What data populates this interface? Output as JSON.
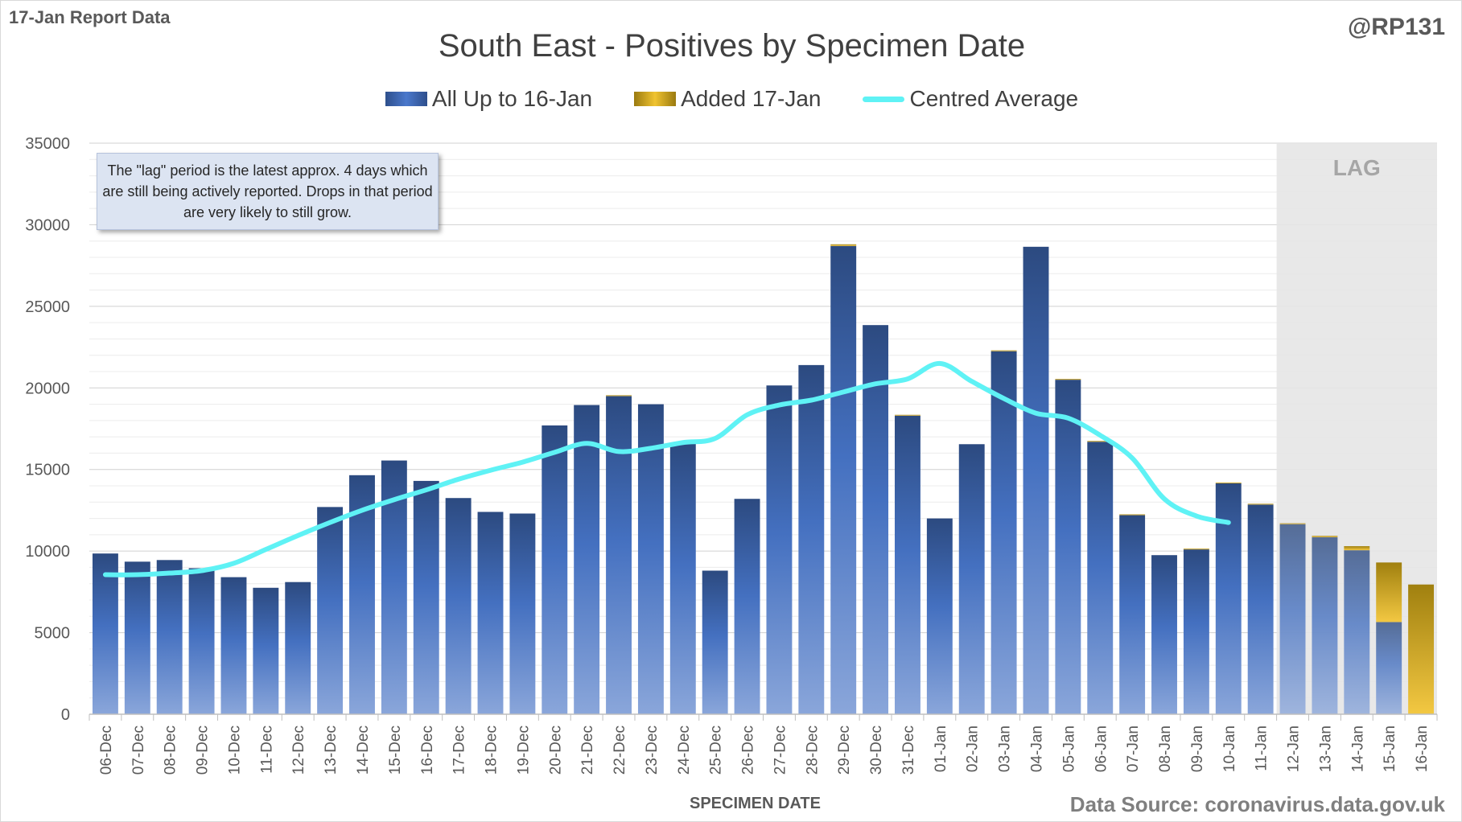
{
  "header": {
    "report_label": "17-Jan Report Data",
    "author": "@RP131",
    "source": "Data Source: coronavirus.data.gov.uk"
  },
  "annotation": {
    "text": "The \"lag\" period is the latest approx. 4 days which are still being actively reported. Drops in that period are very likely to still grow."
  },
  "colors": {
    "bar_dark": "#2c4a80",
    "bar_light": "#8aa6da",
    "added_dark": "#a0800f",
    "added_light": "#f3c842",
    "line": "#5ff2f5",
    "lag_shade": "#e6e6e6",
    "grid": "#d9d9d9"
  },
  "chart_data": {
    "type": "bar",
    "title": "South East - Positives by Specimen Date",
    "xlabel": "SPECIMEN DATE",
    "ylabel": "",
    "ylim": [
      0,
      35000
    ],
    "yticks": [
      0,
      5000,
      10000,
      15000,
      20000,
      25000,
      30000,
      35000
    ],
    "stacked": true,
    "lag_label": "LAG",
    "lag_start_index": 37,
    "categories": [
      "06-Dec",
      "07-Dec",
      "08-Dec",
      "09-Dec",
      "10-Dec",
      "11-Dec",
      "12-Dec",
      "13-Dec",
      "14-Dec",
      "15-Dec",
      "16-Dec",
      "17-Dec",
      "18-Dec",
      "19-Dec",
      "20-Dec",
      "21-Dec",
      "22-Dec",
      "23-Dec",
      "24-Dec",
      "25-Dec",
      "26-Dec",
      "27-Dec",
      "28-Dec",
      "29-Dec",
      "30-Dec",
      "31-Dec",
      "01-Jan",
      "02-Jan",
      "03-Jan",
      "04-Jan",
      "05-Jan",
      "06-Jan",
      "07-Jan",
      "08-Jan",
      "09-Jan",
      "10-Jan",
      "11-Jan",
      "12-Jan",
      "13-Jan",
      "14-Jan",
      "15-Jan",
      "16-Jan"
    ],
    "series": [
      {
        "name": "All Up to 16-Jan",
        "kind": "bar",
        "values": [
          9850,
          9350,
          9450,
          8950,
          8400,
          7750,
          8100,
          12700,
          14650,
          15550,
          14300,
          13250,
          12400,
          12300,
          17700,
          18950,
          19500,
          19000,
          16600,
          8800,
          13200,
          20150,
          21400,
          28700,
          23850,
          18300,
          12000,
          16550,
          22250,
          28650,
          20500,
          16700,
          12200,
          9750,
          10100,
          14150,
          12850,
          11650,
          10850,
          10050,
          5650,
          0
        ]
      },
      {
        "name": "Added 17-Jan",
        "kind": "bar",
        "values": [
          0,
          0,
          0,
          0,
          0,
          0,
          0,
          0,
          0,
          0,
          0,
          0,
          0,
          0,
          0,
          0,
          50,
          0,
          0,
          0,
          0,
          0,
          0,
          100,
          0,
          50,
          0,
          0,
          50,
          0,
          50,
          50,
          50,
          0,
          50,
          50,
          50,
          50,
          80,
          250,
          3650,
          7950
        ]
      },
      {
        "name": "Centred Average",
        "kind": "line",
        "values": [
          8550,
          8550,
          8650,
          8800,
          9250,
          10100,
          10950,
          11750,
          12500,
          13150,
          13750,
          14400,
          14950,
          15450,
          16050,
          16600,
          16100,
          16300,
          16650,
          16900,
          18350,
          18950,
          19250,
          19750,
          20250,
          20550,
          21500,
          20400,
          19350,
          18450,
          18150,
          17100,
          15700,
          13200,
          12150,
          11750,
          null,
          null,
          null,
          null,
          null,
          null
        ]
      }
    ]
  }
}
